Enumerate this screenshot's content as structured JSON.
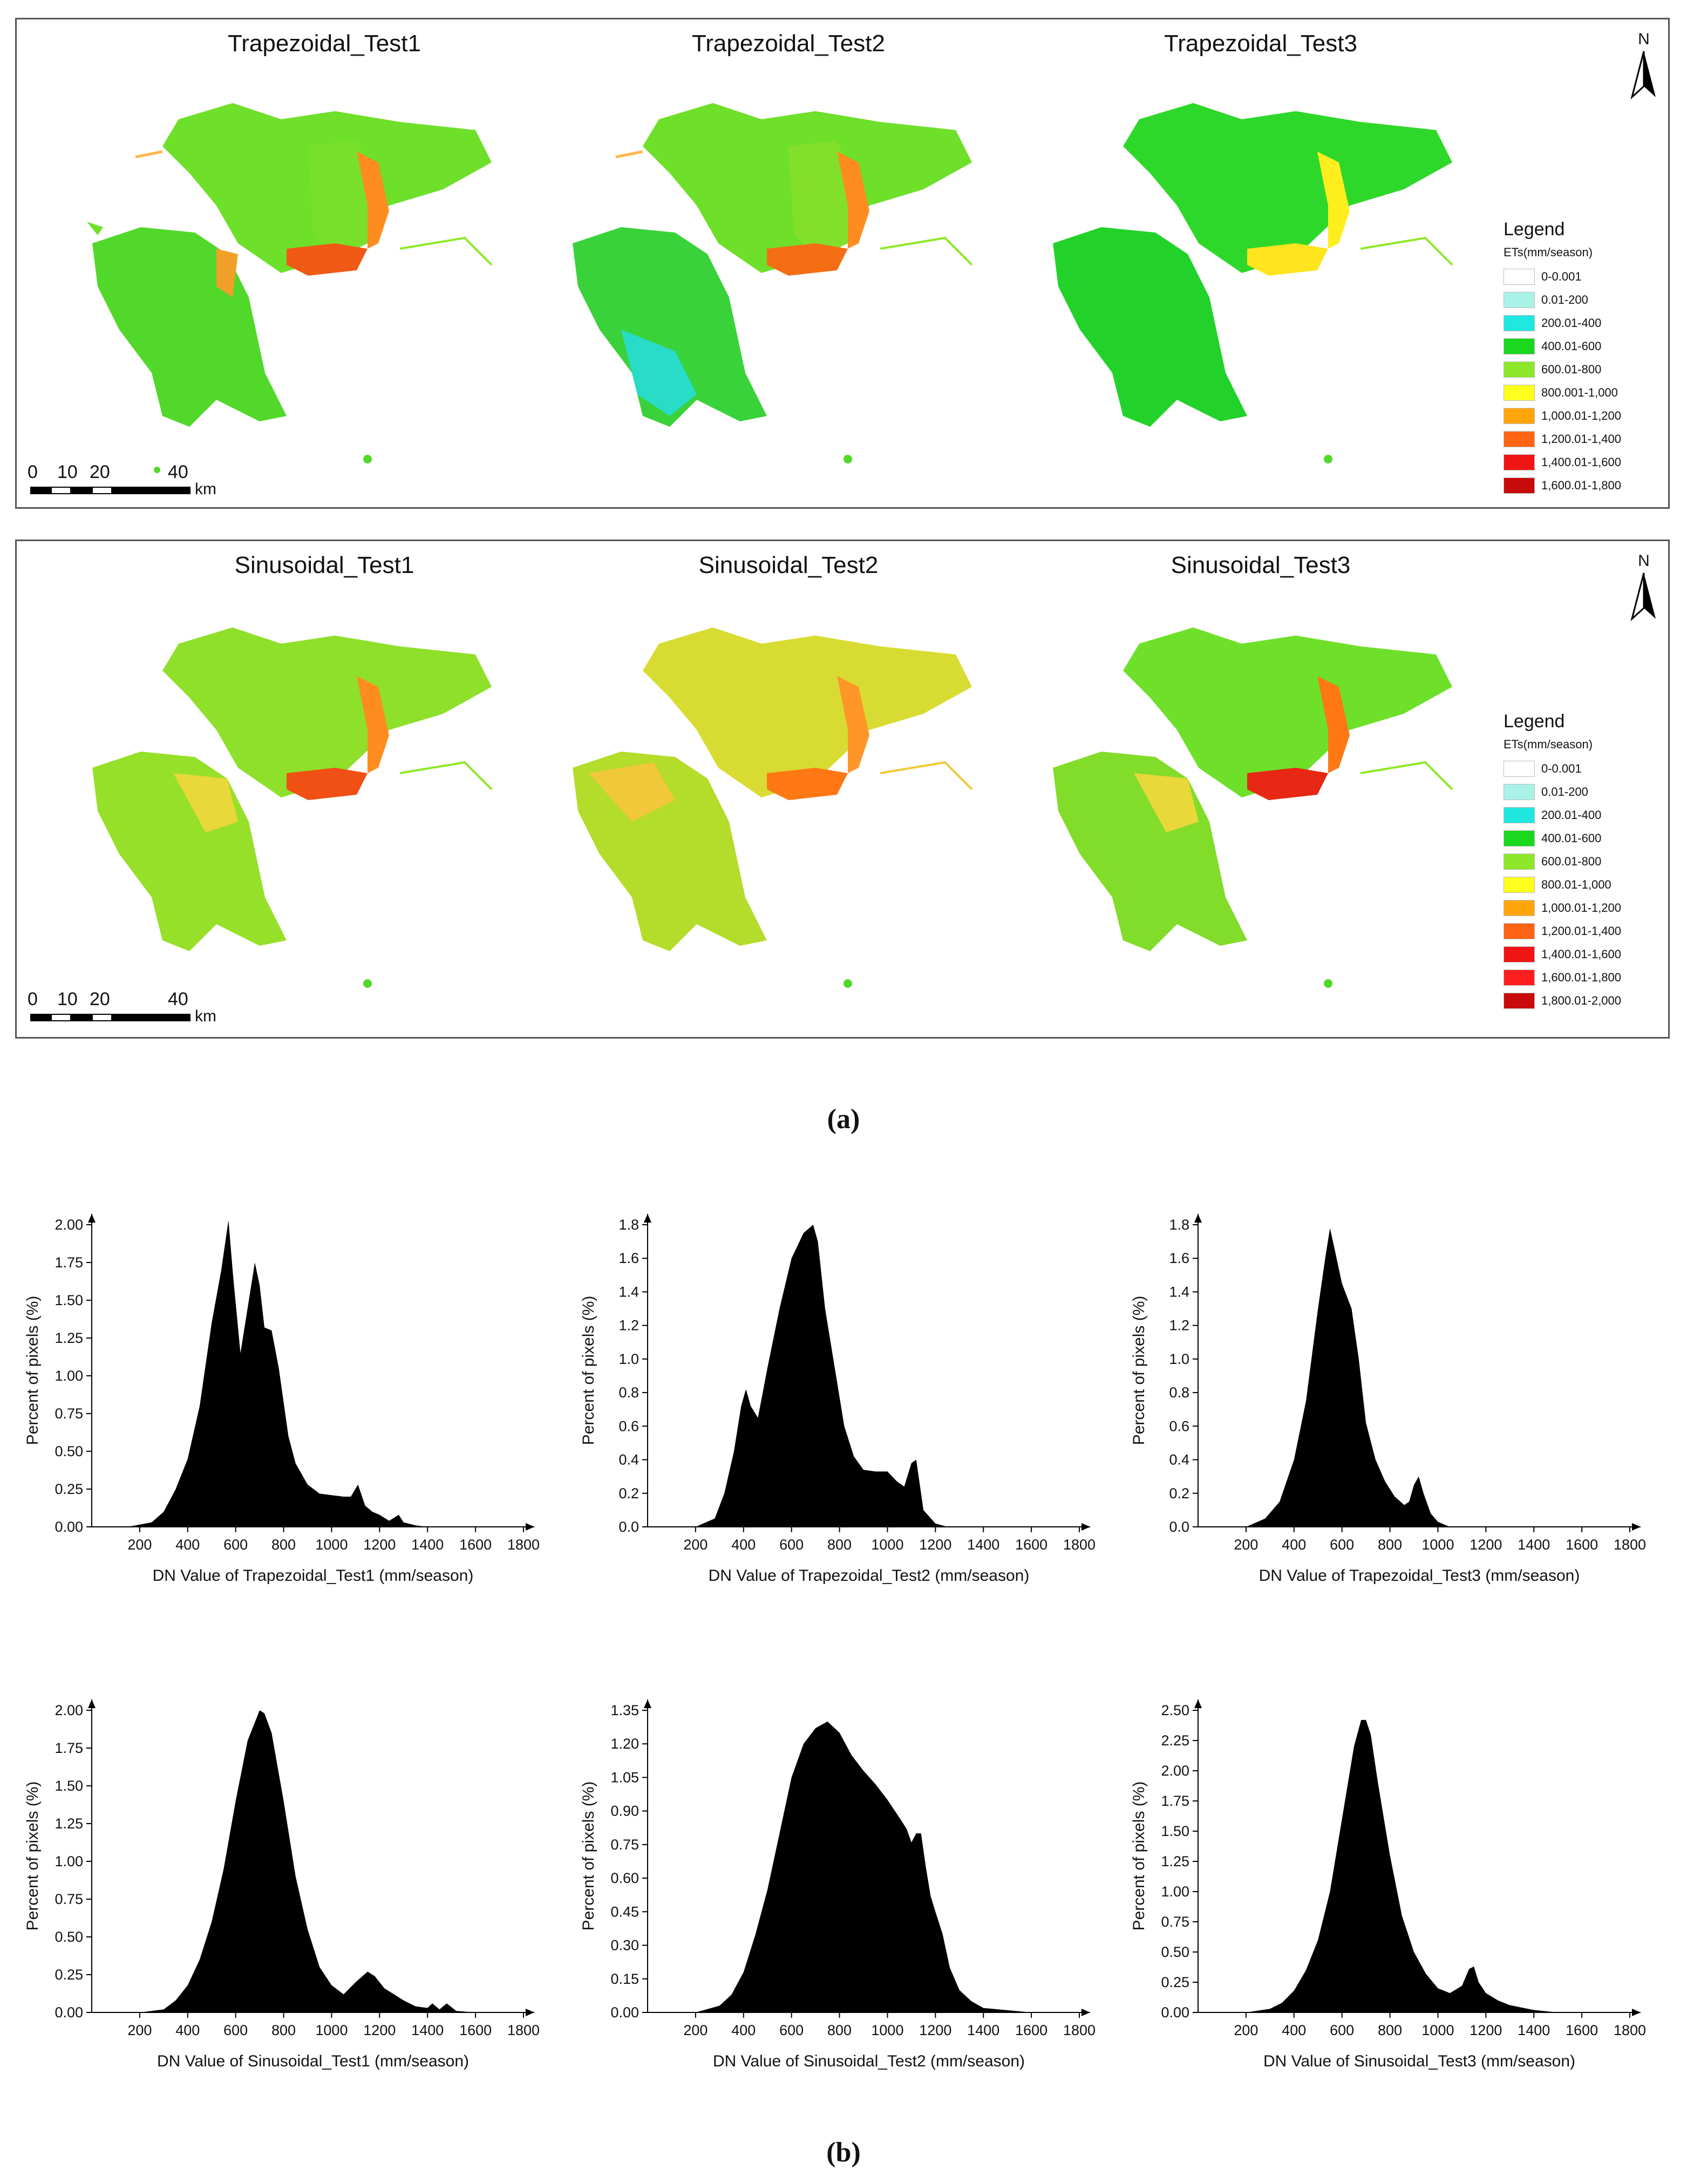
{
  "captions": {
    "a": "(a)",
    "b": "(b)"
  },
  "north_label": "N",
  "scale_bar": {
    "labels": [
      "0",
      "10",
      "20",
      "40"
    ],
    "unit": "km"
  },
  "maps_top": {
    "titles": [
      "Trapezoidal_Test1",
      "Trapezoidal_Test2",
      "Trapezoidal_Test3"
    ]
  },
  "maps_bottom": {
    "titles": [
      "Sinusoidal_Test1",
      "Sinusoidal_Test2",
      "Sinusoidal_Test3"
    ]
  },
  "legend_top": {
    "title": "Legend",
    "unit": "ETs(mm/season)",
    "items": [
      {
        "label": "0-0.001",
        "color": "#ffffff"
      },
      {
        "label": "0.01-200",
        "color": "#aaf2e8"
      },
      {
        "label": "200.01-400",
        "color": "#1ee8e0"
      },
      {
        "label": "400.01-600",
        "color": "#19d81e"
      },
      {
        "label": "600.01-800",
        "color": "#8ee82a"
      },
      {
        "label": "800.001-1,000",
        "color": "#ffff1e"
      },
      {
        "label": "1,000.01-1,200",
        "color": "#ffa50a"
      },
      {
        "label": "1,200.01-1,400",
        "color": "#ff6414"
      },
      {
        "label": "1,400.01-1,600",
        "color": "#f01414"
      },
      {
        "label": "1,600.01-1,800",
        "color": "#c80a0a"
      }
    ]
  },
  "legend_bottom": {
    "title": "Legend",
    "unit": "ETs(mm/season)",
    "items": [
      {
        "label": "0-0.001",
        "color": "#ffffff"
      },
      {
        "label": "0.01-200",
        "color": "#aaf2e8"
      },
      {
        "label": "200.01-400",
        "color": "#1ee8e0"
      },
      {
        "label": "400.01-600",
        "color": "#19d81e"
      },
      {
        "label": "600.01-800",
        "color": "#8ee82a"
      },
      {
        "label": "800.01-1,000",
        "color": "#ffff1e"
      },
      {
        "label": "1,000.01-1,200",
        "color": "#ffa50a"
      },
      {
        "label": "1,200.01-1,400",
        "color": "#ff6414"
      },
      {
        "label": "1,400.01-1,600",
        "color": "#f01414"
      },
      {
        "label": "1,600.01-1,800",
        "color": "#ff1e1e"
      },
      {
        "label": "1,800.01-2,000",
        "color": "#c80a0a"
      }
    ]
  },
  "chart_data": [
    {
      "type": "area",
      "title": "",
      "xlabel": "DN Value of Trapezoidal_Test1 (mm/season)",
      "ylabel": "Percent of pixels (%)",
      "xlim": [
        0,
        1800
      ],
      "ylim": [
        0,
        2.0
      ],
      "xticks": [
        "200",
        "400",
        "600",
        "800",
        "1000",
        "1200",
        "1400",
        "1600",
        "1800"
      ],
      "yticks": [
        "0.00",
        "0.25",
        "0.50",
        "0.75",
        "1.00",
        "1.25",
        "1.50",
        "1.75",
        "2.00"
      ],
      "x": [
        150,
        250,
        300,
        350,
        400,
        450,
        500,
        540,
        570,
        590,
        620,
        650,
        680,
        700,
        720,
        750,
        780,
        820,
        850,
        900,
        950,
        1000,
        1050,
        1080,
        1110,
        1140,
        1170,
        1200,
        1240,
        1280,
        1300,
        1350,
        1400,
        1450
      ],
      "y": [
        0,
        0.03,
        0.1,
        0.25,
        0.45,
        0.8,
        1.35,
        1.7,
        2.03,
        1.65,
        1.15,
        1.45,
        1.75,
        1.6,
        1.32,
        1.3,
        1.05,
        0.6,
        0.42,
        0.28,
        0.22,
        0.21,
        0.2,
        0.2,
        0.28,
        0.14,
        0.1,
        0.08,
        0.04,
        0.08,
        0.03,
        0.01,
        0,
        0
      ]
    },
    {
      "type": "area",
      "title": "",
      "xlabel": "DN Value of Trapezoidal_Test2 (mm/season)",
      "ylabel": "Percent of pixels (%)",
      "xlim": [
        0,
        1800
      ],
      "ylim": [
        0,
        1.8
      ],
      "xticks": [
        "200",
        "400",
        "600",
        "800",
        "1000",
        "1200",
        "1400",
        "1600",
        "1800"
      ],
      "yticks": [
        "0.0",
        "0.2",
        "0.4",
        "0.6",
        "0.8",
        "1.0",
        "1.2",
        "1.4",
        "1.6",
        "1.8"
      ],
      "x": [
        200,
        280,
        320,
        360,
        390,
        410,
        430,
        460,
        500,
        550,
        600,
        650,
        690,
        710,
        740,
        780,
        820,
        860,
        900,
        950,
        1000,
        1040,
        1070,
        1100,
        1120,
        1150,
        1200,
        1250
      ],
      "y": [
        0,
        0.05,
        0.2,
        0.45,
        0.72,
        0.82,
        0.72,
        0.65,
        0.95,
        1.3,
        1.6,
        1.75,
        1.8,
        1.7,
        1.3,
        0.95,
        0.6,
        0.42,
        0.34,
        0.33,
        0.33,
        0.27,
        0.24,
        0.38,
        0.4,
        0.1,
        0.02,
        0
      ]
    },
    {
      "type": "area",
      "title": "",
      "xlabel": "DN Value of Trapezoidal_Test3 (mm/season)",
      "ylabel": "Percent of pixels (%)",
      "xlim": [
        0,
        1800
      ],
      "ylim": [
        0,
        1.8
      ],
      "xticks": [
        "200",
        "400",
        "600",
        "800",
        "1000",
        "1200",
        "1400",
        "1600",
        "1800"
      ],
      "yticks": [
        "0.0",
        "0.2",
        "0.4",
        "0.6",
        "0.8",
        "1.0",
        "1.2",
        "1.4",
        "1.6",
        "1.8"
      ],
      "x": [
        200,
        280,
        340,
        400,
        450,
        500,
        530,
        550,
        570,
        600,
        640,
        670,
        700,
        740,
        780,
        820,
        860,
        880,
        900,
        920,
        940,
        970,
        1000,
        1050
      ],
      "y": [
        0,
        0.05,
        0.15,
        0.4,
        0.75,
        1.3,
        1.6,
        1.78,
        1.65,
        1.45,
        1.3,
        1.0,
        0.62,
        0.4,
        0.27,
        0.18,
        0.13,
        0.15,
        0.25,
        0.3,
        0.2,
        0.08,
        0.03,
        0
      ]
    },
    {
      "type": "area",
      "title": "",
      "xlabel": "DN Value of Sinusoidal_Test1 (mm/season)",
      "ylabel": "Percent of pixels (%)",
      "xlim": [
        0,
        1800
      ],
      "ylim": [
        0,
        2.0
      ],
      "xticks": [
        "200",
        "400",
        "600",
        "800",
        "1000",
        "1200",
        "1400",
        "1600",
        "1800"
      ],
      "yticks": [
        "0.00",
        "0.25",
        "0.50",
        "0.75",
        "1.00",
        "1.25",
        "1.50",
        "1.75",
        "2.00"
      ],
      "x": [
        200,
        300,
        350,
        400,
        450,
        500,
        550,
        600,
        650,
        700,
        720,
        750,
        800,
        850,
        900,
        950,
        1000,
        1050,
        1100,
        1150,
        1180,
        1220,
        1260,
        1300,
        1350,
        1400,
        1420,
        1450,
        1480,
        1520,
        1600
      ],
      "y": [
        0,
        0.02,
        0.08,
        0.18,
        0.35,
        0.6,
        0.95,
        1.4,
        1.8,
        2.0,
        1.98,
        1.85,
        1.4,
        0.9,
        0.55,
        0.3,
        0.18,
        0.12,
        0.2,
        0.27,
        0.24,
        0.16,
        0.12,
        0.08,
        0.04,
        0.03,
        0.06,
        0.02,
        0.06,
        0.01,
        0
      ]
    },
    {
      "type": "area",
      "title": "",
      "xlabel": "DN Value of Sinusoidal_Test2 (mm/season)",
      "ylabel": "Percent of pixels (%)",
      "xlim": [
        0,
        1800
      ],
      "ylim": [
        0,
        1.35
      ],
      "xticks": [
        "200",
        "400",
        "600",
        "800",
        "1000",
        "1200",
        "1400",
        "1600",
        "1800"
      ],
      "yticks": [
        "0.00",
        "0.15",
        "0.30",
        "0.45",
        "0.60",
        "0.75",
        "0.90",
        "1.05",
        "1.20",
        "1.35"
      ],
      "x": [
        200,
        300,
        350,
        400,
        450,
        500,
        550,
        600,
        650,
        700,
        750,
        800,
        850,
        900,
        950,
        1000,
        1050,
        1080,
        1100,
        1120,
        1140,
        1160,
        1180,
        1200,
        1230,
        1260,
        1300,
        1350,
        1400,
        1500,
        1600
      ],
      "y": [
        0,
        0.03,
        0.08,
        0.18,
        0.35,
        0.55,
        0.8,
        1.05,
        1.2,
        1.27,
        1.3,
        1.25,
        1.15,
        1.08,
        1.02,
        0.95,
        0.87,
        0.82,
        0.76,
        0.8,
        0.8,
        0.65,
        0.52,
        0.45,
        0.35,
        0.2,
        0.1,
        0.05,
        0.02,
        0.01,
        0
      ]
    },
    {
      "type": "area",
      "title": "",
      "xlabel": "DN Value of Sinusoidal_Test3 (mm/season)",
      "ylabel": "Percent of pixels (%)",
      "xlim": [
        0,
        1800
      ],
      "ylim": [
        0,
        2.5
      ],
      "xticks": [
        "200",
        "400",
        "600",
        "800",
        "1000",
        "1200",
        "1400",
        "1600",
        "1800"
      ],
      "yticks": [
        "0.00",
        "0.25",
        "0.50",
        "0.75",
        "1.00",
        "1.25",
        "1.50",
        "1.75",
        "2.00",
        "2.25",
        "2.50"
      ],
      "x": [
        200,
        300,
        350,
        400,
        450,
        500,
        550,
        600,
        650,
        680,
        700,
        720,
        750,
        800,
        850,
        900,
        950,
        1000,
        1050,
        1100,
        1130,
        1150,
        1170,
        1200,
        1250,
        1300,
        1400,
        1500
      ],
      "y": [
        0,
        0.03,
        0.08,
        0.18,
        0.35,
        0.6,
        1.0,
        1.6,
        2.2,
        2.42,
        2.42,
        2.3,
        1.9,
        1.3,
        0.8,
        0.5,
        0.32,
        0.2,
        0.16,
        0.22,
        0.36,
        0.38,
        0.25,
        0.16,
        0.1,
        0.06,
        0.02,
        0
      ]
    }
  ]
}
